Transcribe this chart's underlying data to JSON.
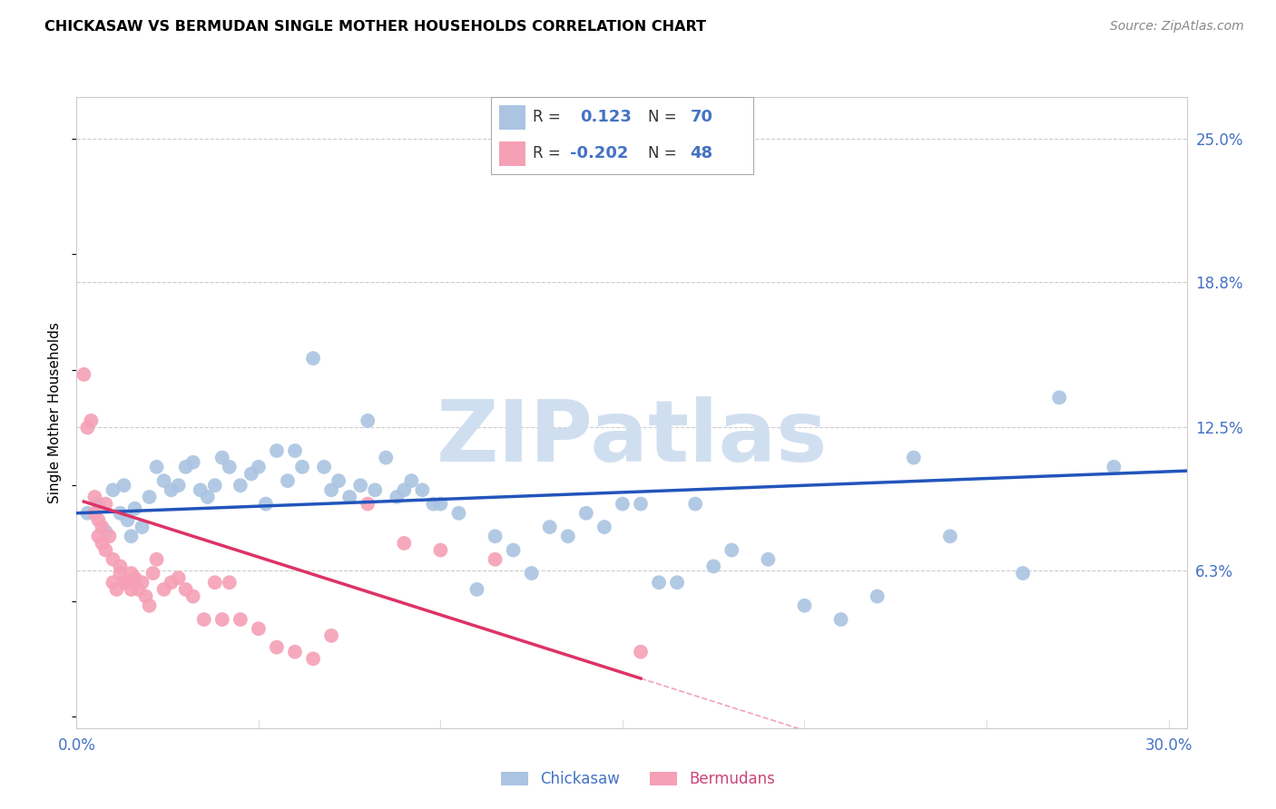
{
  "title": "CHICKASAW VS BERMUDAN SINGLE MOTHER HOUSEHOLDS CORRELATION CHART",
  "source": "Source: ZipAtlas.com",
  "ylabel": "Single Mother Households",
  "y_tick_labels": [
    "6.3%",
    "12.5%",
    "18.8%",
    "25.0%"
  ],
  "y_tick_values": [
    0.063,
    0.125,
    0.188,
    0.25
  ],
  "x_tick_values": [
    0.0,
    0.05,
    0.1,
    0.15,
    0.2,
    0.25,
    0.3
  ],
  "xlim": [
    0.0,
    0.305
  ],
  "ylim": [
    -0.005,
    0.268
  ],
  "chickasaw_color": "#aac4e2",
  "bermudans_color": "#f5a0b5",
  "chickasaw_line_color": "#2255bb",
  "bermudans_line_color": "#dd3366",
  "background_color": "#ffffff",
  "grid_color": "#cccccc",
  "watermark_color": "#d0dff0",
  "chickasaw_x": [
    0.003,
    0.006,
    0.008,
    0.01,
    0.012,
    0.013,
    0.014,
    0.015,
    0.016,
    0.018,
    0.02,
    0.022,
    0.024,
    0.026,
    0.028,
    0.03,
    0.032,
    0.034,
    0.036,
    0.038,
    0.04,
    0.042,
    0.045,
    0.048,
    0.05,
    0.052,
    0.055,
    0.058,
    0.06,
    0.062,
    0.065,
    0.068,
    0.07,
    0.072,
    0.075,
    0.078,
    0.08,
    0.082,
    0.085,
    0.088,
    0.09,
    0.092,
    0.095,
    0.098,
    0.1,
    0.105,
    0.11,
    0.115,
    0.12,
    0.125,
    0.13,
    0.135,
    0.14,
    0.145,
    0.15,
    0.155,
    0.16,
    0.165,
    0.17,
    0.175,
    0.18,
    0.19,
    0.2,
    0.21,
    0.22,
    0.23,
    0.24,
    0.26,
    0.27,
    0.285
  ],
  "chickasaw_y": [
    0.088,
    0.092,
    0.08,
    0.098,
    0.088,
    0.1,
    0.085,
    0.078,
    0.09,
    0.082,
    0.095,
    0.108,
    0.102,
    0.098,
    0.1,
    0.108,
    0.11,
    0.098,
    0.095,
    0.1,
    0.112,
    0.108,
    0.1,
    0.105,
    0.108,
    0.092,
    0.115,
    0.102,
    0.115,
    0.108,
    0.155,
    0.108,
    0.098,
    0.102,
    0.095,
    0.1,
    0.128,
    0.098,
    0.112,
    0.095,
    0.098,
    0.102,
    0.098,
    0.092,
    0.092,
    0.088,
    0.055,
    0.078,
    0.072,
    0.062,
    0.082,
    0.078,
    0.088,
    0.082,
    0.092,
    0.092,
    0.058,
    0.058,
    0.092,
    0.065,
    0.072,
    0.068,
    0.048,
    0.042,
    0.052,
    0.112,
    0.078,
    0.062,
    0.138,
    0.108
  ],
  "bermudans_x": [
    0.002,
    0.003,
    0.004,
    0.005,
    0.005,
    0.006,
    0.006,
    0.007,
    0.007,
    0.008,
    0.008,
    0.009,
    0.01,
    0.01,
    0.011,
    0.012,
    0.012,
    0.013,
    0.014,
    0.015,
    0.015,
    0.016,
    0.017,
    0.018,
    0.019,
    0.02,
    0.021,
    0.022,
    0.024,
    0.026,
    0.028,
    0.03,
    0.032,
    0.035,
    0.038,
    0.04,
    0.042,
    0.045,
    0.05,
    0.055,
    0.06,
    0.065,
    0.07,
    0.08,
    0.09,
    0.1,
    0.115,
    0.155
  ],
  "bermudans_y": [
    0.148,
    0.125,
    0.128,
    0.095,
    0.088,
    0.085,
    0.078,
    0.082,
    0.075,
    0.092,
    0.072,
    0.078,
    0.068,
    0.058,
    0.055,
    0.062,
    0.065,
    0.058,
    0.058,
    0.055,
    0.062,
    0.06,
    0.055,
    0.058,
    0.052,
    0.048,
    0.062,
    0.068,
    0.055,
    0.058,
    0.06,
    0.055,
    0.052,
    0.042,
    0.058,
    0.042,
    0.058,
    0.042,
    0.038,
    0.03,
    0.028,
    0.025,
    0.035,
    0.092,
    0.075,
    0.072,
    0.068,
    0.028
  ]
}
